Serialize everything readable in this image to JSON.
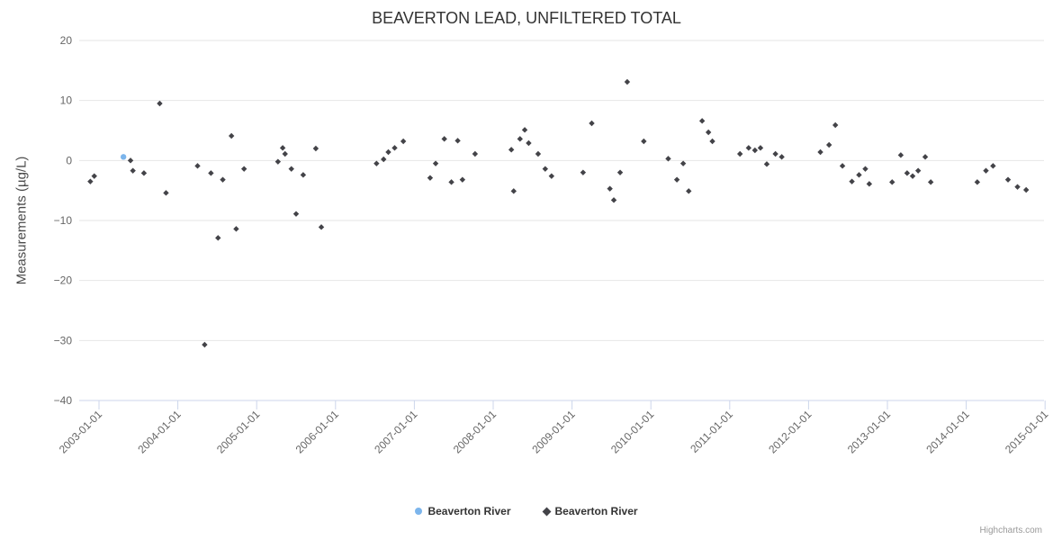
{
  "credits": "Highcharts.com",
  "legend": [
    {
      "name": "Beaverton River",
      "marker": "circle",
      "color": "#7cb5ec"
    },
    {
      "name": "Beaverton River",
      "marker": "diamond",
      "color": "#434348"
    }
  ],
  "chart_data": {
    "type": "scatter",
    "title": "BEAVERTON LEAD, UNFILTERED TOTAL",
    "xlabel": "",
    "ylabel": "Measurements (µg/L)",
    "ylim": [
      -40,
      20
    ],
    "grid": "horizontal",
    "legend_position": "bottom-center",
    "y_ticks": [
      20,
      10,
      0,
      -10,
      -20,
      -30,
      -40
    ],
    "y_tick_labels": [
      "20",
      "10",
      "0",
      "−10",
      "−20",
      "−30",
      "−40"
    ],
    "x_tick_years": [
      2003,
      2004,
      2005,
      2006,
      2007,
      2008,
      2009,
      2010,
      2011,
      2012,
      2013,
      2014,
      2015
    ],
    "x_tick_labels": [
      "2003-01-01",
      "2004-01-01",
      "2005-01-01",
      "2006-01-01",
      "2007-01-01",
      "2008-01-01",
      "2009-01-01",
      "2010-01-01",
      "2011-01-01",
      "2012-01-01",
      "2013-01-01",
      "2014-01-01",
      "2015-01-01"
    ],
    "series": [
      {
        "name": "Beaverton River",
        "marker": "circle",
        "color": "#7cb5ec",
        "points": [
          [
            2003.31,
            0.6
          ]
        ]
      },
      {
        "name": "Beaverton River",
        "marker": "diamond",
        "color": "#434348",
        "points": [
          [
            2002.89,
            -3.5
          ],
          [
            2002.94,
            -2.6
          ],
          [
            2003.4,
            0.0
          ],
          [
            2003.43,
            -1.7
          ],
          [
            2003.57,
            -2.1
          ],
          [
            2003.77,
            9.5
          ],
          [
            2003.85,
            -5.4
          ],
          [
            2004.25,
            -0.9
          ],
          [
            2004.34,
            -30.7
          ],
          [
            2004.42,
            -2.1
          ],
          [
            2004.51,
            -12.9
          ],
          [
            2004.57,
            -3.2
          ],
          [
            2004.68,
            4.1
          ],
          [
            2004.74,
            -11.4
          ],
          [
            2004.84,
            -1.4
          ],
          [
            2005.27,
            -0.2
          ],
          [
            2005.33,
            2.1
          ],
          [
            2005.36,
            1.1
          ],
          [
            2005.44,
            -1.4
          ],
          [
            2005.5,
            -8.9
          ],
          [
            2005.59,
            -2.4
          ],
          [
            2005.75,
            2.0
          ],
          [
            2005.82,
            -11.1
          ],
          [
            2006.52,
            -0.5
          ],
          [
            2006.61,
            0.2
          ],
          [
            2006.67,
            1.4
          ],
          [
            2006.75,
            2.1
          ],
          [
            2006.86,
            3.2
          ],
          [
            2007.2,
            -2.9
          ],
          [
            2007.27,
            -0.5
          ],
          [
            2007.38,
            3.6
          ],
          [
            2007.47,
            -3.6
          ],
          [
            2007.55,
            3.3
          ],
          [
            2007.61,
            -3.2
          ],
          [
            2007.77,
            1.1
          ],
          [
            2008.23,
            1.8
          ],
          [
            2008.26,
            -5.1
          ],
          [
            2008.34,
            3.6
          ],
          [
            2008.4,
            5.1
          ],
          [
            2008.45,
            2.9
          ],
          [
            2008.57,
            1.1
          ],
          [
            2008.66,
            -1.4
          ],
          [
            2008.74,
            -2.6
          ],
          [
            2009.14,
            -2.0
          ],
          [
            2009.25,
            6.2
          ],
          [
            2009.48,
            -4.7
          ],
          [
            2009.53,
            -6.6
          ],
          [
            2009.61,
            -2.0
          ],
          [
            2009.7,
            13.1
          ],
          [
            2009.91,
            3.2
          ],
          [
            2010.22,
            0.3
          ],
          [
            2010.33,
            -3.2
          ],
          [
            2010.41,
            -0.5
          ],
          [
            2010.48,
            -5.1
          ],
          [
            2010.65,
            6.6
          ],
          [
            2010.73,
            4.7
          ],
          [
            2010.78,
            3.2
          ],
          [
            2011.13,
            1.1
          ],
          [
            2011.24,
            2.1
          ],
          [
            2011.32,
            1.7
          ],
          [
            2011.39,
            2.1
          ],
          [
            2011.47,
            -0.6
          ],
          [
            2011.58,
            1.1
          ],
          [
            2011.66,
            0.6
          ],
          [
            2012.15,
            1.4
          ],
          [
            2012.26,
            2.6
          ],
          [
            2012.34,
            5.9
          ],
          [
            2012.43,
            -0.9
          ],
          [
            2012.55,
            -3.5
          ],
          [
            2012.64,
            -2.4
          ],
          [
            2012.72,
            -1.4
          ],
          [
            2012.77,
            -3.9
          ],
          [
            2013.06,
            -3.6
          ],
          [
            2013.17,
            0.9
          ],
          [
            2013.25,
            -2.1
          ],
          [
            2013.32,
            -2.6
          ],
          [
            2013.39,
            -1.7
          ],
          [
            2013.48,
            0.6
          ],
          [
            2013.55,
            -3.6
          ],
          [
            2014.14,
            -3.6
          ],
          [
            2014.25,
            -1.7
          ],
          [
            2014.34,
            -0.9
          ],
          [
            2014.53,
            -3.2
          ],
          [
            2014.65,
            -4.4
          ],
          [
            2014.76,
            -4.9
          ]
        ]
      }
    ]
  }
}
